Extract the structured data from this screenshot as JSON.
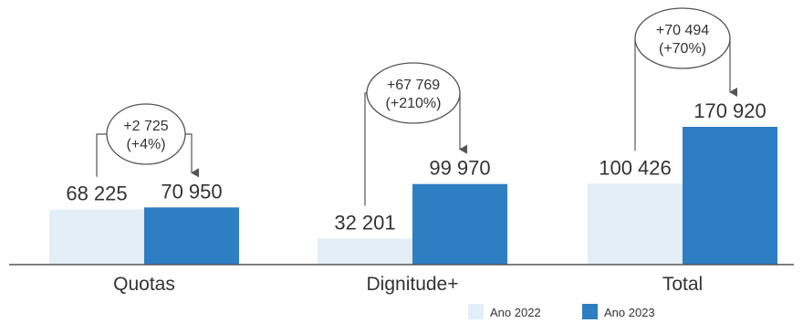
{
  "chart_data": {
    "type": "bar",
    "categories": [
      "Quotas",
      "Dignitude+",
      "Total"
    ],
    "series": [
      {
        "name": "Ano 2022",
        "values": [
          68225,
          32201,
          100426
        ],
        "labels": [
          "68 225",
          "32 201",
          "100 426"
        ]
      },
      {
        "name": "Ano 2023",
        "values": [
          70950,
          99970,
          170920
        ],
        "labels": [
          "70 950",
          "99 970",
          "170 920"
        ]
      }
    ],
    "changes": [
      {
        "abs": "+2 725",
        "pct": "(+4%)"
      },
      {
        "abs": "+67 769",
        "pct": "(+210%)"
      },
      {
        "abs": "+70 494",
        "pct": "(+70%)"
      }
    ],
    "ylim": [
      0,
      170920
    ],
    "grid": false,
    "legend_position": "bottom-right",
    "colors": {
      "Ano 2022": "#e3eef6",
      "Ano 2023": "#2e7ec3",
      "axis": "#555555",
      "text": "#333333"
    }
  }
}
